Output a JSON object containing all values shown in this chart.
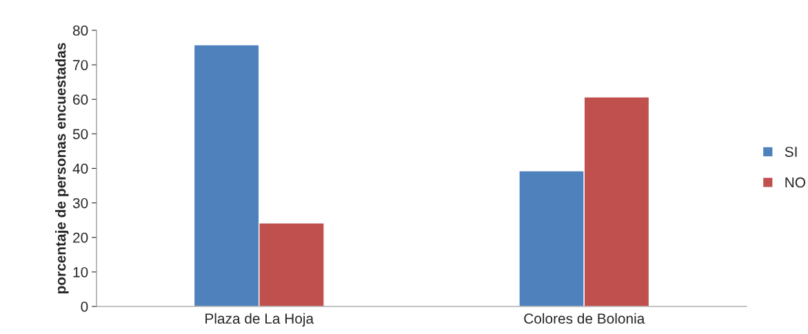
{
  "chart_data": {
    "type": "bar",
    "ylabel": "porcentaje de personas encuestadas",
    "categories": [
      "Plaza de La Hoja",
      "Colores de Bolonia"
    ],
    "series": [
      {
        "name": "SI",
        "color": "#4f81bd",
        "values": [
          75.8,
          39.3
        ]
      },
      {
        "name": "NO",
        "color": "#c0504d",
        "values": [
          24.2,
          60.7
        ]
      }
    ],
    "ylim": [
      0,
      80
    ],
    "yticks": [
      0,
      10,
      20,
      30,
      40,
      50,
      60,
      70,
      80
    ],
    "grid": false,
    "legend": "right"
  }
}
